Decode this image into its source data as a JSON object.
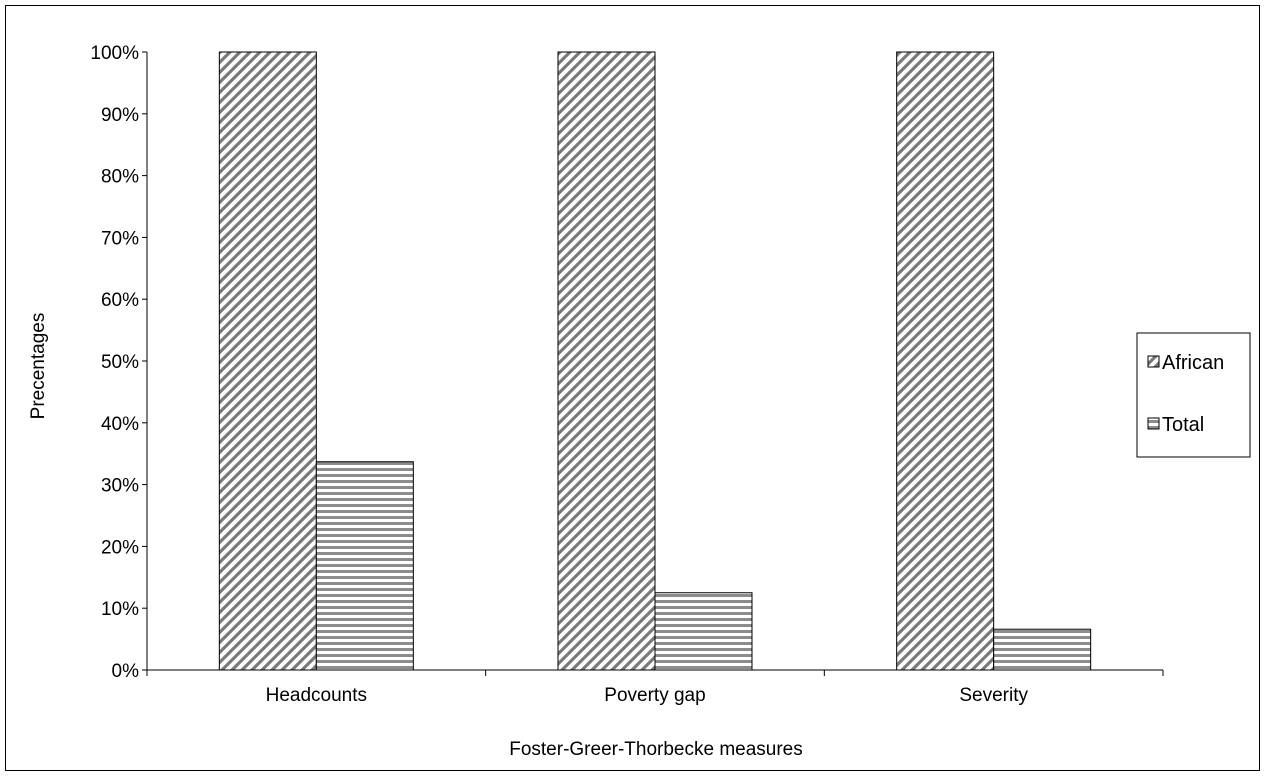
{
  "chart_data": {
    "type": "bar",
    "xlabel": "Foster-Greer-Thorbecke measures",
    "ylabel": "Precentages",
    "categories": [
      "Headcounts",
      "Poverty gap",
      "Severity"
    ],
    "ylim": [
      0,
      100
    ],
    "yticks": [
      "0%",
      "10%",
      "20%",
      "30%",
      "40%",
      "50%",
      "60%",
      "70%",
      "80%",
      "90%",
      "100%"
    ],
    "grid": false,
    "legend_position": "right",
    "series": [
      {
        "name": "African",
        "values": [
          100,
          100,
          100
        ],
        "pattern": "diagonal-hatch",
        "color": "#808080"
      },
      {
        "name": "Total",
        "values": [
          33.7,
          12.5,
          6.6
        ],
        "pattern": "horizontal-stripes",
        "color": "#808080"
      }
    ]
  }
}
